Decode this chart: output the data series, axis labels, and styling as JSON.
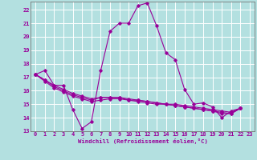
{
  "xlabel": "Windchill (Refroidissement éolien,°C)",
  "bg_color": "#b3e0e0",
  "grid_color": "#ffffff",
  "line_color": "#990099",
  "xlim": [
    -0.5,
    23.5
  ],
  "ylim": [
    13,
    22.6
  ],
  "yticks": [
    13,
    14,
    15,
    16,
    17,
    18,
    19,
    20,
    21,
    22
  ],
  "xticks": [
    0,
    1,
    2,
    3,
    4,
    5,
    6,
    7,
    8,
    9,
    10,
    11,
    12,
    13,
    14,
    15,
    16,
    17,
    18,
    19,
    20,
    21,
    22,
    23
  ],
  "series": [
    [
      17.2,
      17.5,
      16.4,
      16.4,
      14.6,
      13.2,
      13.7,
      17.5,
      20.4,
      21.0,
      21.0,
      22.3,
      22.5,
      20.8,
      18.8,
      18.3,
      16.1,
      15.0,
      15.1,
      14.8,
      14.0,
      14.5,
      14.7
    ],
    [
      17.2,
      16.8,
      16.3,
      16.0,
      15.7,
      15.5,
      15.3,
      15.5,
      15.5,
      15.5,
      15.3,
      15.3,
      15.2,
      15.1,
      15.0,
      14.9,
      14.8,
      14.7,
      14.6,
      14.5,
      14.4,
      14.3,
      14.7
    ],
    [
      17.2,
      16.7,
      16.2,
      15.9,
      15.6,
      15.4,
      15.2,
      15.3,
      15.4,
      15.4,
      15.3,
      15.2,
      15.1,
      15.0,
      15.0,
      14.9,
      14.8,
      14.7,
      14.6,
      14.5,
      14.3,
      14.3,
      14.7
    ],
    [
      17.2,
      16.8,
      16.4,
      16.1,
      15.8,
      15.6,
      15.4,
      15.5,
      15.5,
      15.5,
      15.4,
      15.3,
      15.2,
      15.1,
      15.0,
      15.0,
      14.9,
      14.8,
      14.7,
      14.6,
      14.5,
      14.4,
      14.7
    ]
  ]
}
